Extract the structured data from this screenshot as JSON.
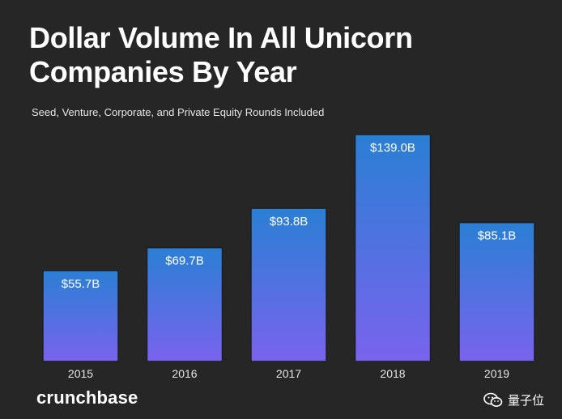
{
  "title_line1": "Dollar Volume In All Unicorn",
  "title_line2": "Companies By Year",
  "subtitle": "Seed, Venture, Corporate, and Private Equity Rounds Included",
  "brand": "crunchbase",
  "watermark": "量子位",
  "colors": {
    "background": "#262626",
    "bar_top": "#2a7fd4",
    "bar_bottom": "#7a63ee",
    "bar_border": "#1e1e1e"
  },
  "chart_data": {
    "type": "bar",
    "title": "Dollar Volume In All Unicorn Companies By Year",
    "subtitle": "Seed, Venture, Corporate, and Private Equity Rounds Included",
    "categories": [
      "2015",
      "2016",
      "2017",
      "2018",
      "2019"
    ],
    "values": [
      55.7,
      69.7,
      93.8,
      139.0,
      85.1
    ],
    "labels": [
      "$55.7B",
      "$69.7B",
      "$93.8B",
      "$139.0B",
      "$85.1B"
    ],
    "xlabel": "",
    "ylabel": "",
    "ylim": [
      0,
      139.0
    ],
    "grid": false,
    "legend": "none"
  }
}
